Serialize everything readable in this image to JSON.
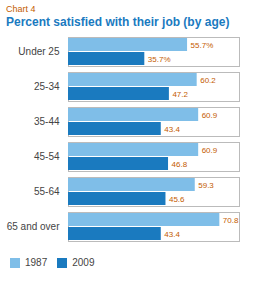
{
  "chart_data": {
    "type": "bar",
    "orientation": "horizontal",
    "subtitle": "Chart 4",
    "title": "Percent satisfied with their job (by age)",
    "categories": [
      "65 and over",
      "55-64",
      "45-54",
      "35-44",
      "25-34",
      "Under 25"
    ],
    "series": [
      {
        "name": "1987",
        "color": "#7fbee8",
        "values": [
          70.8,
          59.3,
          60.9,
          60.9,
          60.2,
          55.7
        ],
        "value_labels": [
          "70.8",
          "59.3",
          "60.9",
          "60.9",
          "60.2",
          "55.7%"
        ]
      },
      {
        "name": "2009",
        "color": "#1a7abf",
        "values": [
          43.4,
          45.6,
          46.8,
          43.4,
          47.2,
          35.7
        ],
        "value_labels": [
          "43.4",
          "45.6",
          "46.8",
          "43.4",
          "47.2",
          "35.7%"
        ]
      }
    ],
    "xlim": [
      0,
      80
    ],
    "xticks": [],
    "grid": false,
    "legend": "lower left",
    "data_labels": true,
    "tick_labels": "y"
  }
}
